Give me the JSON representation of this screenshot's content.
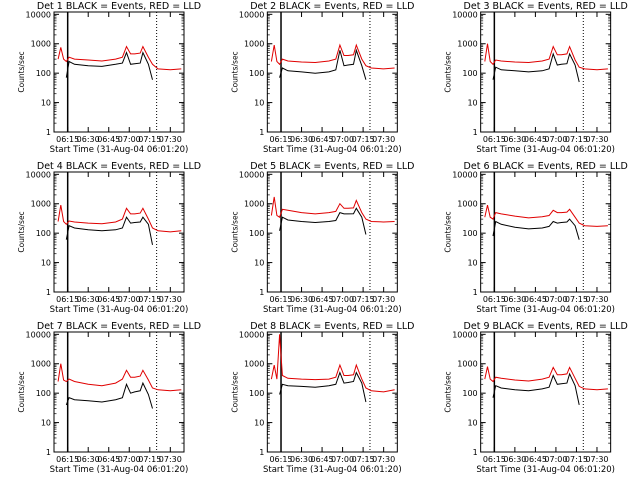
{
  "chart_data": {
    "type": "line",
    "layout": "3x3",
    "y_scale": "log",
    "ylim": [
      1,
      12000
    ],
    "ytick_labels": [
      "1",
      "10",
      "100",
      "1000",
      "10000"
    ],
    "xlim": [
      "06:05",
      "07:40"
    ],
    "xtick_labels": [
      "06:15",
      "06:30",
      "06:45",
      "07:00",
      "07:15",
      "07:30"
    ],
    "xlabel": "Start Time (31-Aug-04 06:01:20)",
    "ylabel": "Counts/sec",
    "series_colors": {
      "events": "#000000",
      "lld": "#e00000"
    },
    "vertical_markers": {
      "solid": "06:15",
      "dotted": "07:20"
    },
    "panels": [
      {
        "title": "Det 1  BLACK = Events, RED = LLD",
        "series": [
          {
            "x": [
              "06:08",
              "06:10",
              "06:14",
              "06:16",
              "06:20",
              "06:30",
              "06:40",
              "06:50",
              "06:55",
              "06:58",
              "07:01",
              "07:04",
              "07:08",
              "07:10",
              "07:14",
              "07:17",
              "07:21",
              "07:30",
              "07:38"
            ],
            "values": [
              null,
              null,
              70,
              250,
              200,
              180,
              170,
              200,
              220,
              500,
              200,
              210,
              220,
              500,
              200,
              60,
              null,
              null,
              null
            ]
          },
          {
            "x": [
              "06:08",
              "06:10",
              "06:12",
              "06:14",
              "06:16",
              "06:20",
              "06:30",
              "06:40",
              "06:50",
              "06:55",
              "06:58",
              "07:01",
              "07:04",
              "07:08",
              "07:10",
              "07:14",
              "07:17",
              "07:21",
              "07:30",
              "07:38"
            ],
            "values": [
              300,
              750,
              300,
              250,
              350,
              300,
              280,
              260,
              300,
              350,
              800,
              450,
              450,
              480,
              800,
              350,
              200,
              140,
              130,
              140
            ]
          }
        ]
      },
      {
        "title": "Det 2  BLACK = Events, RED = LLD",
        "series": [
          {
            "x": [
              "06:08",
              "06:10",
              "06:14",
              "06:16",
              "06:20",
              "06:30",
              "06:40",
              "06:50",
              "06:55",
              "06:58",
              "07:01",
              "07:04",
              "07:08",
              "07:10",
              "07:14",
              "07:17",
              "07:21",
              "07:30",
              "07:38"
            ],
            "values": [
              null,
              null,
              70,
              150,
              120,
              110,
              100,
              110,
              130,
              600,
              180,
              190,
              200,
              600,
              180,
              60,
              null,
              null,
              null
            ]
          },
          {
            "x": [
              "06:08",
              "06:10",
              "06:12",
              "06:14",
              "06:16",
              "06:20",
              "06:30",
              "06:40",
              "06:50",
              "06:55",
              "06:58",
              "07:01",
              "07:04",
              "07:08",
              "07:10",
              "07:14",
              "07:17",
              "07:21",
              "07:30",
              "07:38"
            ],
            "values": [
              250,
              900,
              250,
              200,
              300,
              260,
              240,
              230,
              260,
              300,
              900,
              400,
              400,
              420,
              900,
              300,
              180,
              150,
              140,
              150
            ]
          }
        ]
      },
      {
        "title": "Det 3  BLACK = Events, RED = LLD",
        "series": [
          {
            "x": [
              "06:08",
              "06:10",
              "06:14",
              "06:16",
              "06:20",
              "06:30",
              "06:40",
              "06:50",
              "06:55",
              "06:58",
              "07:01",
              "07:04",
              "07:08",
              "07:10",
              "07:14",
              "07:17",
              "07:21",
              "07:30",
              "07:38"
            ],
            "values": [
              null,
              null,
              60,
              160,
              130,
              120,
              110,
              120,
              140,
              450,
              190,
              200,
              210,
              450,
              190,
              50,
              null,
              null,
              null
            ]
          },
          {
            "x": [
              "06:08",
              "06:10",
              "06:12",
              "06:14",
              "06:16",
              "06:20",
              "06:30",
              "06:40",
              "06:50",
              "06:55",
              "06:58",
              "07:01",
              "07:04",
              "07:08",
              "07:10",
              "07:14",
              "07:17",
              "07:21",
              "07:30",
              "07:38"
            ],
            "values": [
              250,
              1000,
              250,
              200,
              280,
              260,
              240,
              230,
              260,
              300,
              800,
              420,
              420,
              450,
              800,
              280,
              160,
              140,
              130,
              140
            ]
          }
        ]
      },
      {
        "title": "Det 4  BLACK = Events, RED = LLD",
        "series": [
          {
            "x": [
              "06:08",
              "06:10",
              "06:14",
              "06:16",
              "06:20",
              "06:30",
              "06:40",
              "06:50",
              "06:55",
              "06:58",
              "07:01",
              "07:04",
              "07:08",
              "07:10",
              "07:14",
              "07:17",
              "07:21",
              "07:30",
              "07:38"
            ],
            "values": [
              null,
              null,
              60,
              180,
              150,
              130,
              120,
              130,
              150,
              350,
              220,
              230,
              240,
              350,
              200,
              40,
              null,
              null,
              null
            ]
          },
          {
            "x": [
              "06:08",
              "06:10",
              "06:12",
              "06:14",
              "06:16",
              "06:20",
              "06:30",
              "06:40",
              "06:50",
              "06:55",
              "06:58",
              "07:01",
              "07:04",
              "07:08",
              "07:10",
              "07:14",
              "07:17",
              "07:21",
              "07:30",
              "07:38"
            ],
            "values": [
              250,
              900,
              250,
              200,
              260,
              240,
              220,
              210,
              240,
              300,
              700,
              450,
              450,
              480,
              700,
              300,
              150,
              120,
              110,
              120
            ]
          }
        ]
      },
      {
        "title": "Det 5  BLACK = Events, RED = LLD",
        "series": [
          {
            "x": [
              "06:08",
              "06:10",
              "06:14",
              "06:16",
              "06:20",
              "06:30",
              "06:40",
              "06:50",
              "06:55",
              "06:58",
              "07:01",
              "07:04",
              "07:08",
              "07:10",
              "07:14",
              "07:17",
              "07:21",
              "07:30",
              "07:38"
            ],
            "values": [
              null,
              null,
              120,
              350,
              280,
              250,
              230,
              250,
              270,
              500,
              450,
              450,
              460,
              700,
              350,
              90,
              null,
              null,
              null
            ]
          },
          {
            "x": [
              "06:08",
              "06:10",
              "06:12",
              "06:14",
              "06:16",
              "06:20",
              "06:30",
              "06:40",
              "06:50",
              "06:55",
              "06:58",
              "07:01",
              "07:04",
              "07:08",
              "07:10",
              "07:14",
              "07:17",
              "07:21",
              "07:30",
              "07:38"
            ],
            "values": [
              400,
              1700,
              400,
              350,
              650,
              600,
              500,
              450,
              500,
              550,
              1000,
              700,
              700,
              720,
              1300,
              500,
              300,
              250,
              240,
              250
            ]
          }
        ]
      },
      {
        "title": "Det 6  BLACK = Events, RED = LLD",
        "series": [
          {
            "x": [
              "06:08",
              "06:10",
              "06:14",
              "06:16",
              "06:20",
              "06:30",
              "06:40",
              "06:50",
              "06:55",
              "06:58",
              "07:01",
              "07:04",
              "07:08",
              "07:10",
              "07:14",
              "07:17",
              "07:21",
              "07:30",
              "07:38"
            ],
            "values": [
              null,
              null,
              80,
              250,
              200,
              160,
              140,
              150,
              170,
              250,
              220,
              230,
              240,
              300,
              180,
              60,
              null,
              null,
              null
            ]
          },
          {
            "x": [
              "06:08",
              "06:10",
              "06:12",
              "06:14",
              "06:16",
              "06:20",
              "06:30",
              "06:40",
              "06:50",
              "06:55",
              "06:58",
              "07:01",
              "07:04",
              "07:08",
              "07:10",
              "07:14",
              "07:17",
              "07:21",
              "07:30",
              "07:38"
            ],
            "values": [
              350,
              900,
              350,
              300,
              500,
              450,
              380,
              330,
              360,
              400,
              600,
              500,
              500,
              520,
              650,
              350,
              220,
              180,
              170,
              180
            ]
          }
        ]
      },
      {
        "title": "Det 7  BLACK = Events, RED = LLD",
        "series": [
          {
            "x": [
              "06:08",
              "06:10",
              "06:14",
              "06:16",
              "06:20",
              "06:30",
              "06:40",
              "06:50",
              "06:55",
              "06:58",
              "07:01",
              "07:04",
              "07:08",
              "07:10",
              "07:14",
              "07:17",
              "07:21",
              "07:30",
              "07:38"
            ],
            "values": [
              null,
              null,
              40,
              70,
              60,
              55,
              50,
              60,
              70,
              200,
              100,
              110,
              120,
              220,
              90,
              30,
              null,
              null,
              null
            ]
          },
          {
            "x": [
              "06:08",
              "06:10",
              "06:12",
              "06:14",
              "06:16",
              "06:20",
              "06:30",
              "06:40",
              "06:50",
              "06:55",
              "06:58",
              "07:01",
              "07:04",
              "07:08",
              "07:10",
              "07:14",
              "07:17",
              "07:21",
              "07:30",
              "07:38"
            ],
            "values": [
              250,
              1000,
              280,
              250,
              300,
              250,
              200,
              180,
              220,
              300,
              600,
              350,
              350,
              380,
              600,
              280,
              150,
              130,
              120,
              130
            ]
          }
        ]
      },
      {
        "title": "Det 8  BLACK = Events, RED = LLD",
        "series": [
          {
            "x": [
              "06:08",
              "06:10",
              "06:14",
              "06:16",
              "06:20",
              "06:30",
              "06:40",
              "06:50",
              "06:55",
              "06:58",
              "07:01",
              "07:04",
              "07:08",
              "07:10",
              "07:14",
              "07:17",
              "07:21",
              "07:30",
              "07:38"
            ],
            "values": [
              null,
              null,
              90,
              200,
              180,
              170,
              160,
              180,
              200,
              500,
              220,
              230,
              250,
              500,
              220,
              50,
              null,
              null,
              null
            ]
          },
          {
            "x": [
              "06:08",
              "06:10",
              "06:12",
              "06:14",
              "06:16",
              "06:20",
              "06:30",
              "06:40",
              "06:50",
              "06:55",
              "06:58",
              "07:01",
              "07:04",
              "07:08",
              "07:10",
              "07:14",
              "07:17",
              "07:21",
              "07:30",
              "07:38"
            ],
            "values": [
              300,
              900,
              300,
              10000,
              400,
              320,
              300,
              290,
              300,
              350,
              900,
              400,
              400,
              420,
              900,
              300,
              150,
              120,
              110,
              130
            ]
          }
        ]
      },
      {
        "title": "Det 9  BLACK = Events, RED = LLD",
        "series": [
          {
            "x": [
              "06:08",
              "06:10",
              "06:14",
              "06:16",
              "06:20",
              "06:30",
              "06:40",
              "06:50",
              "06:55",
              "06:58",
              "07:01",
              "07:04",
              "07:08",
              "07:10",
              "07:14",
              "07:17",
              "07:21",
              "07:30",
              "07:38"
            ],
            "values": [
              null,
              null,
              70,
              180,
              150,
              130,
              120,
              140,
              160,
              400,
              200,
              210,
              220,
              450,
              180,
              40,
              null,
              null,
              null
            ]
          },
          {
            "x": [
              "06:08",
              "06:10",
              "06:12",
              "06:14",
              "06:16",
              "06:20",
              "06:30",
              "06:40",
              "06:50",
              "06:55",
              "06:58",
              "07:01",
              "07:04",
              "07:08",
              "07:10",
              "07:14",
              "07:17",
              "07:21",
              "07:30",
              "07:38"
            ],
            "values": [
              300,
              800,
              300,
              250,
              350,
              320,
              280,
              260,
              300,
              350,
              750,
              420,
              420,
              450,
              750,
              320,
              170,
              140,
              130,
              140
            ]
          }
        ]
      }
    ]
  }
}
